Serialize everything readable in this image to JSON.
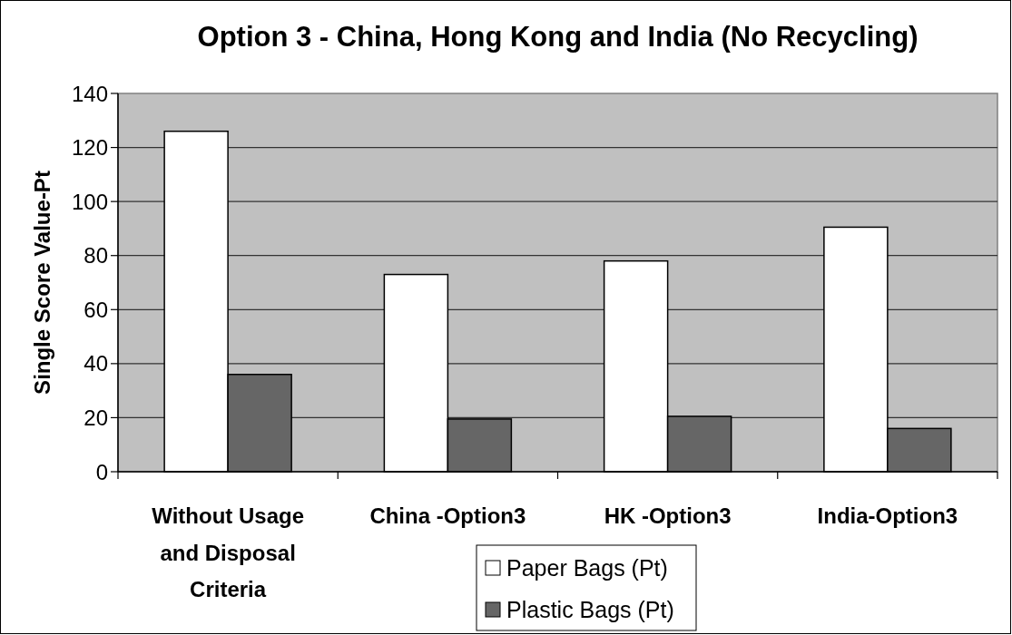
{
  "chart_data": {
    "type": "bar",
    "title": "Option 3 - China, Hong Kong and India (No Recycling)",
    "ylabel": "Single Score Value-Pt",
    "categories": [
      "Without Usage and Disposal Criteria",
      "China -Option3",
      "HK -Option3",
      "India-Option3"
    ],
    "series": [
      {
        "name": "Paper Bags (Pt)",
        "color": "#ffffff",
        "values": [
          126,
          73,
          78,
          90.5
        ]
      },
      {
        "name": "Plastic Bags (Pt)",
        "color": "#666666",
        "values": [
          36,
          19.5,
          20.5,
          16
        ]
      }
    ],
    "ylim": [
      0,
      140
    ],
    "yticks": [
      0,
      20,
      40,
      60,
      80,
      100,
      120,
      140
    ],
    "grid": "y",
    "legend": "bottom"
  }
}
